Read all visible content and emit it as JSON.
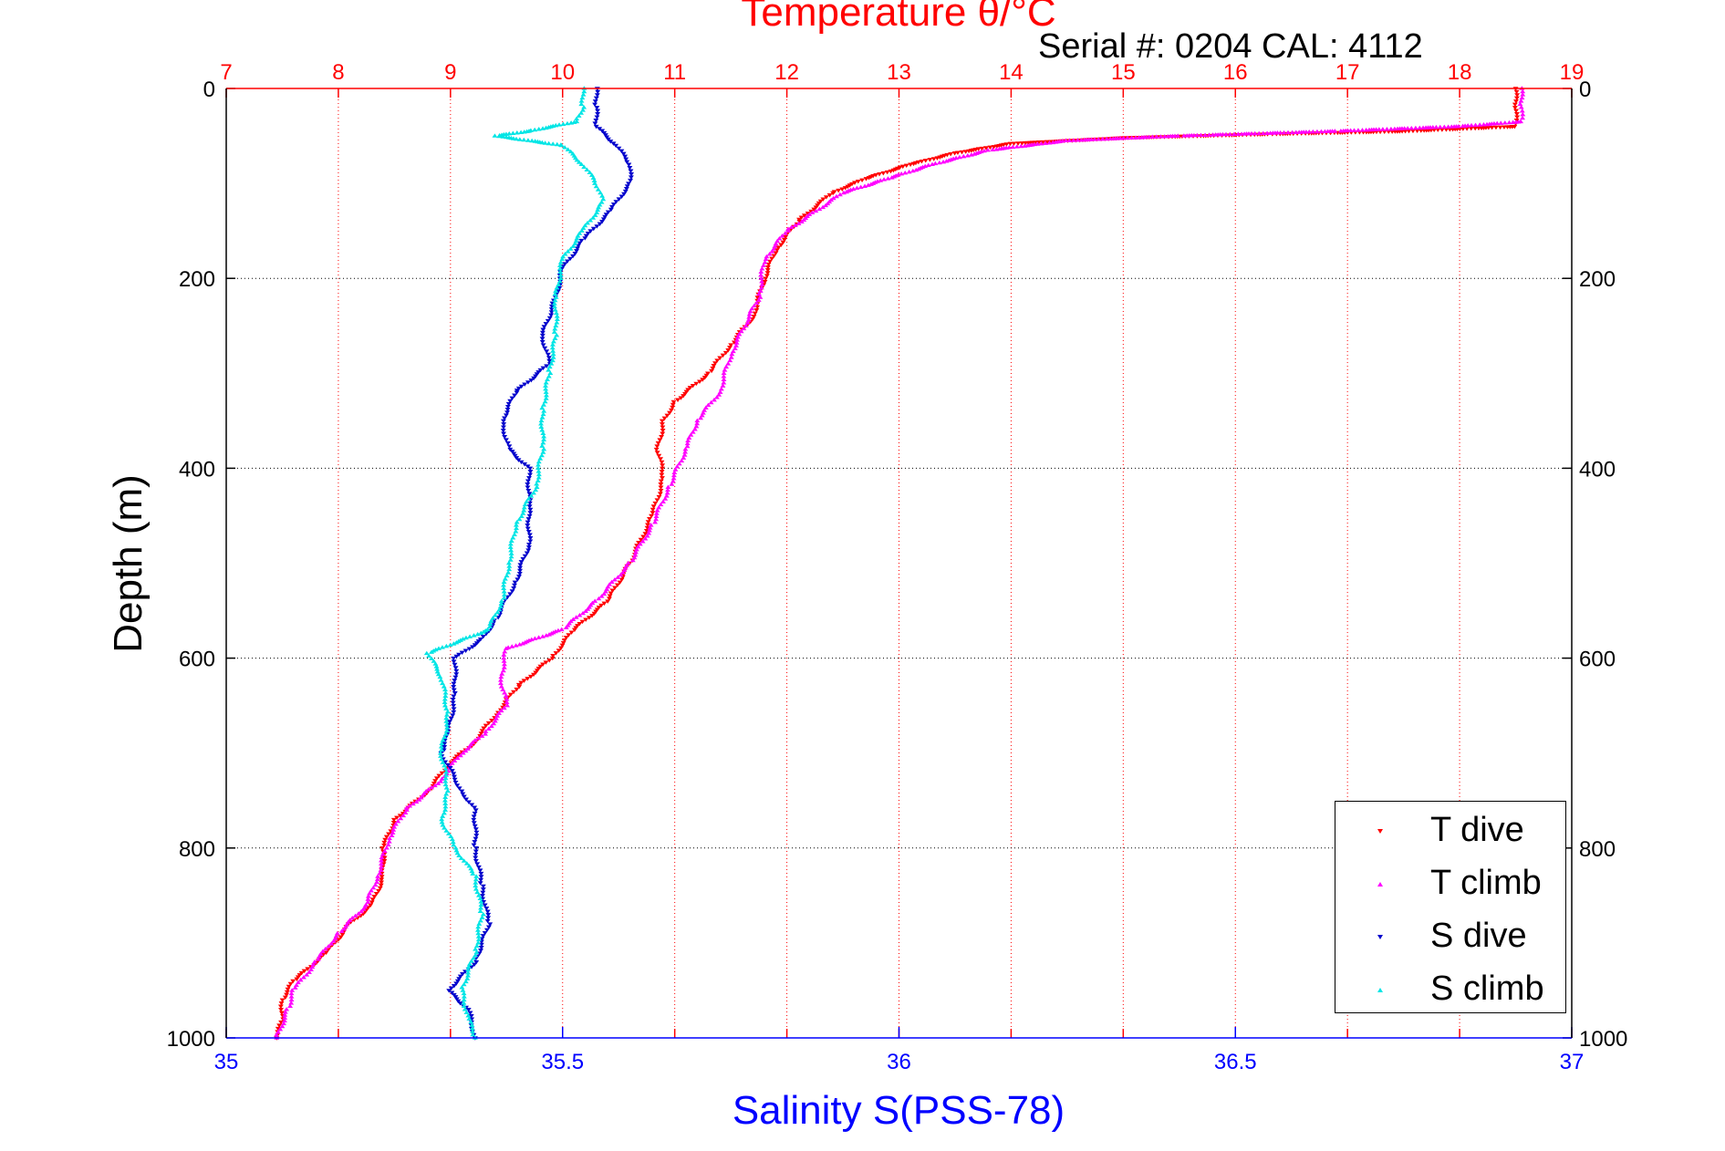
{
  "chart_data": {
    "type": "scatter",
    "title": "Temperature θ/°C",
    "subtitle": "Serial #: 0204  CAL: 4112",
    "ylabel": "Depth (m)",
    "xlabel_bottom": "Salinity S(PSS-78)",
    "ylim": [
      1000,
      0
    ],
    "x_top_lim": [
      7,
      19
    ],
    "x_bottom_lim": [
      35,
      37
    ],
    "y_ticks": [
      "0",
      "200",
      "400",
      "600",
      "800",
      "1000"
    ],
    "x_top_ticks": [
      "7",
      "8",
      "9",
      "10",
      "11",
      "12",
      "13",
      "14",
      "15",
      "16",
      "17",
      "18",
      "19"
    ],
    "x_bottom_ticks": [
      "35",
      "35.5",
      "36",
      "36.5",
      "37"
    ],
    "grid": true,
    "legend_position": "bottom-right",
    "colors": {
      "top_axis": "#ff0000",
      "bottom_axis": "#0000ff",
      "t_dive": "#ff0000",
      "t_climb": "#ff00ff",
      "s_dive": "#0000cc",
      "s_climb": "#00e5e5"
    },
    "series": [
      {
        "name": "T dive",
        "axis": "temperature",
        "marker": "triangle-down",
        "color": "#ff0000",
        "points": [
          [
            18.5,
            0
          ],
          [
            18.5,
            20
          ],
          [
            18.5,
            40
          ],
          [
            17.5,
            45
          ],
          [
            16.3,
            48
          ],
          [
            15.0,
            52
          ],
          [
            14.0,
            58
          ],
          [
            13.5,
            68
          ],
          [
            13.1,
            80
          ],
          [
            12.7,
            95
          ],
          [
            12.4,
            110
          ],
          [
            12.1,
            140
          ],
          [
            11.9,
            170
          ],
          [
            11.8,
            200
          ],
          [
            11.7,
            240
          ],
          [
            11.5,
            270
          ],
          [
            11.3,
            300
          ],
          [
            11.0,
            330
          ],
          [
            10.9,
            350
          ],
          [
            10.85,
            380
          ],
          [
            10.9,
            410
          ],
          [
            10.8,
            450
          ],
          [
            10.6,
            500
          ],
          [
            10.4,
            540
          ],
          [
            10.1,
            570
          ],
          [
            9.9,
            600
          ],
          [
            9.6,
            630
          ],
          [
            9.4,
            660
          ],
          [
            9.2,
            690
          ],
          [
            9.0,
            710
          ],
          [
            8.8,
            740
          ],
          [
            8.5,
            770
          ],
          [
            8.4,
            800
          ],
          [
            8.4,
            830
          ],
          [
            8.3,
            860
          ],
          [
            8.1,
            880
          ],
          [
            7.9,
            910
          ],
          [
            7.6,
            940
          ],
          [
            7.5,
            960
          ],
          [
            7.5,
            980
          ],
          [
            7.45,
            1000
          ]
        ]
      },
      {
        "name": "T climb",
        "axis": "temperature",
        "marker": "triangle-up",
        "color": "#ff00ff",
        "points": [
          [
            18.55,
            0
          ],
          [
            18.55,
            20
          ],
          [
            18.55,
            35
          ],
          [
            18.0,
            40
          ],
          [
            16.9,
            45
          ],
          [
            15.5,
            50
          ],
          [
            14.5,
            55
          ],
          [
            13.8,
            65
          ],
          [
            13.3,
            80
          ],
          [
            12.9,
            95
          ],
          [
            12.5,
            110
          ],
          [
            12.0,
            150
          ],
          [
            11.8,
            180
          ],
          [
            11.75,
            220
          ],
          [
            11.5,
            280
          ],
          [
            11.4,
            320
          ],
          [
            11.2,
            350
          ],
          [
            11.1,
            380
          ],
          [
            10.95,
            420
          ],
          [
            10.8,
            460
          ],
          [
            10.6,
            500
          ],
          [
            10.3,
            540
          ],
          [
            10.0,
            570
          ],
          [
            9.5,
            590
          ],
          [
            9.45,
            620
          ],
          [
            9.5,
            650
          ],
          [
            9.3,
            680
          ],
          [
            9.1,
            700
          ],
          [
            8.9,
            730
          ],
          [
            8.6,
            760
          ],
          [
            8.45,
            790
          ],
          [
            8.35,
            830
          ],
          [
            8.25,
            860
          ],
          [
            8.0,
            890
          ],
          [
            7.8,
            920
          ],
          [
            7.6,
            950
          ],
          [
            7.55,
            970
          ],
          [
            7.45,
            1000
          ]
        ]
      },
      {
        "name": "S dive",
        "axis": "salinity",
        "marker": "triangle-down",
        "color": "#0000cc",
        "points": [
          [
            35.55,
            0
          ],
          [
            35.55,
            20
          ],
          [
            35.55,
            40
          ],
          [
            35.58,
            60
          ],
          [
            35.6,
            80
          ],
          [
            35.6,
            100
          ],
          [
            35.57,
            130
          ],
          [
            35.53,
            160
          ],
          [
            35.5,
            190
          ],
          [
            35.49,
            220
          ],
          [
            35.47,
            260
          ],
          [
            35.48,
            290
          ],
          [
            35.43,
            320
          ],
          [
            35.41,
            350
          ],
          [
            35.42,
            380
          ],
          [
            35.45,
            400
          ],
          [
            35.45,
            440
          ],
          [
            35.45,
            480
          ],
          [
            35.43,
            520
          ],
          [
            35.4,
            560
          ],
          [
            35.38,
            580
          ],
          [
            35.34,
            600
          ],
          [
            35.34,
            640
          ],
          [
            35.33,
            680
          ],
          [
            35.32,
            700
          ],
          [
            35.35,
            740
          ],
          [
            35.37,
            760
          ],
          [
            35.37,
            800
          ],
          [
            35.38,
            840
          ],
          [
            35.39,
            880
          ],
          [
            35.37,
            920
          ],
          [
            35.33,
            950
          ],
          [
            35.36,
            970
          ],
          [
            35.37,
            1000
          ]
        ]
      },
      {
        "name": "S climb",
        "axis": "salinity",
        "marker": "triangle-up",
        "color": "#00e5e5",
        "points": [
          [
            35.53,
            0
          ],
          [
            35.53,
            20
          ],
          [
            35.52,
            35
          ],
          [
            35.45,
            45
          ],
          [
            35.4,
            50
          ],
          [
            35.5,
            60
          ],
          [
            35.53,
            80
          ],
          [
            35.55,
            100
          ],
          [
            35.56,
            120
          ],
          [
            35.53,
            150
          ],
          [
            35.5,
            180
          ],
          [
            35.49,
            220
          ],
          [
            35.49,
            260
          ],
          [
            35.48,
            300
          ],
          [
            35.47,
            340
          ],
          [
            35.47,
            380
          ],
          [
            35.46,
            420
          ],
          [
            35.43,
            460
          ],
          [
            35.42,
            500
          ],
          [
            35.41,
            540
          ],
          [
            35.39,
            570
          ],
          [
            35.3,
            595
          ],
          [
            35.32,
            620
          ],
          [
            35.33,
            660
          ],
          [
            35.32,
            700
          ],
          [
            35.33,
            740
          ],
          [
            35.32,
            770
          ],
          [
            35.34,
            800
          ],
          [
            35.37,
            830
          ],
          [
            35.38,
            870
          ],
          [
            35.37,
            910
          ],
          [
            35.35,
            950
          ],
          [
            35.36,
            980
          ],
          [
            35.37,
            1000
          ]
        ]
      }
    ]
  }
}
